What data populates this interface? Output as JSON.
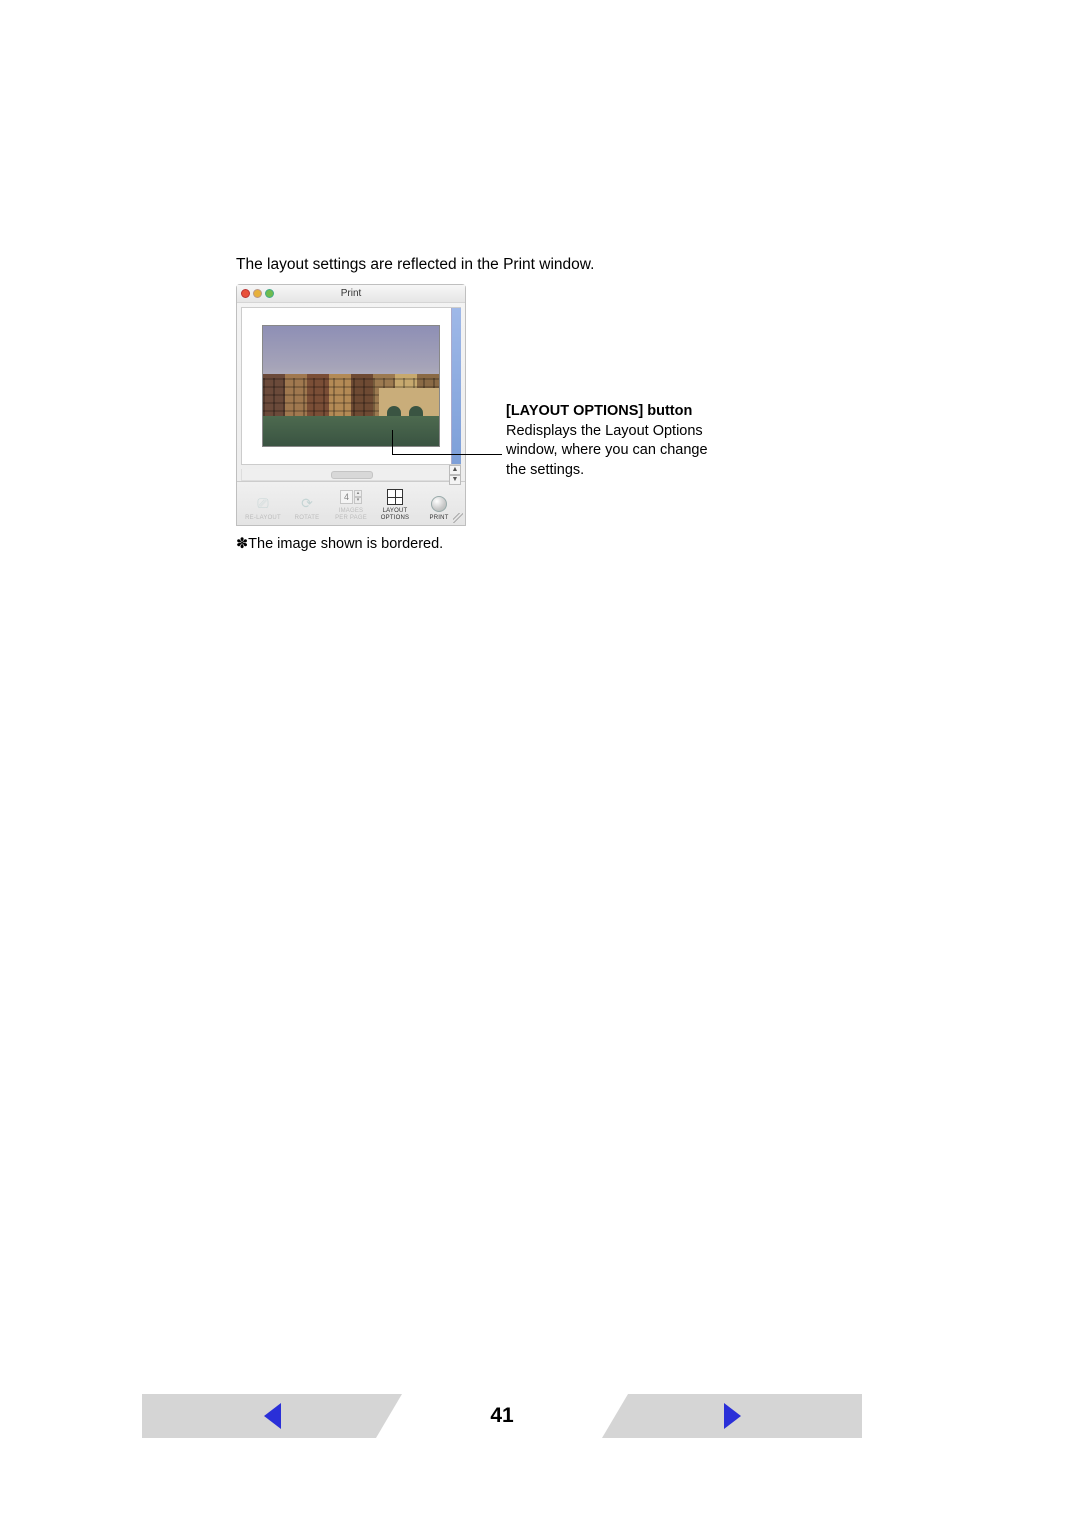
{
  "intro": "The layout settings are reflected in the Print window.",
  "window": {
    "title": "Print",
    "toolbar": {
      "relayout": "RE-LAYOUT",
      "rotate": "ROTATE",
      "images_per_page": "IMAGES\nPER PAGE",
      "images_value": "4",
      "layout_options": "LAYOUT\nOPTIONS",
      "print": "PRINT"
    }
  },
  "callout": {
    "title": "[LAYOUT OPTIONS] button",
    "body": "Redisplays the Layout Options window, where you can change the settings."
  },
  "footnote_prefix": "✽",
  "footnote": "The image shown is bordered.",
  "page_number": "41"
}
